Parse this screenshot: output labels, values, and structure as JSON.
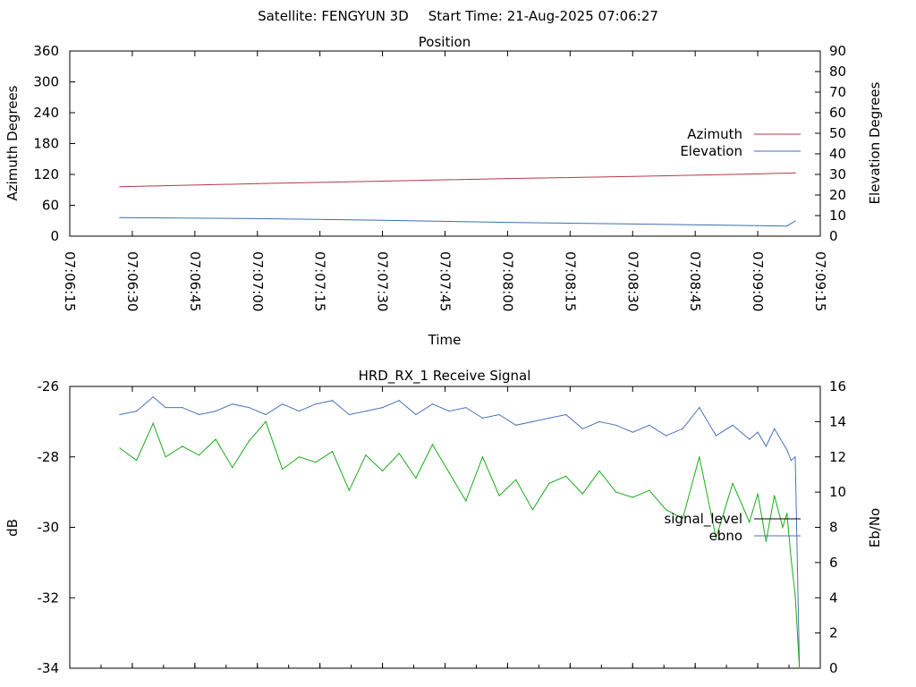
{
  "header": {
    "satellite": "Satellite: FENGYUN 3D",
    "start_time": "Start Time: 21-Aug-2025 07:06:27"
  },
  "chart_data": [
    {
      "type": "line",
      "title": "Position",
      "xlabel": "Time",
      "ylabel": "Azimuth Degrees",
      "y2label": "Elevation Degrees",
      "xlim": [
        "07:06:15",
        "07:09:15"
      ],
      "x_ticks": [
        "07:06:15",
        "07:06:30",
        "07:06:45",
        "07:07:00",
        "07:07:15",
        "07:07:30",
        "07:07:45",
        "07:08:00",
        "07:08:15",
        "07:08:30",
        "07:08:45",
        "07:09:00",
        "07:09:15"
      ],
      "ylim": [
        0,
        360
      ],
      "y_ticks": [
        "0",
        "60",
        "120",
        "180",
        "240",
        "300",
        "360"
      ],
      "y2lim": [
        0,
        90
      ],
      "y2_ticks": [
        "0",
        "10",
        "20",
        "30",
        "40",
        "50",
        "60",
        "70",
        "80",
        "90"
      ],
      "legend_position": "right",
      "series": [
        {
          "name": "Azimuth",
          "axis": "y",
          "color": "#b03a48",
          "x": [
            "07:06:27",
            "07:07:00",
            "07:07:30",
            "07:08:00",
            "07:08:30",
            "07:09:00",
            "07:09:09"
          ],
          "values": [
            96,
            102,
            107,
            112,
            116,
            121,
            123
          ]
        },
        {
          "name": "Elevation",
          "axis": "y2",
          "color": "#3a6fb0",
          "x": [
            "07:06:27",
            "07:07:00",
            "07:07:30",
            "07:08:00",
            "07:08:30",
            "07:09:00",
            "07:09:07",
            "07:09:09"
          ],
          "values": [
            9,
            8.5,
            7.7,
            6.7,
            5.9,
            5.1,
            4.9,
            7.4
          ]
        }
      ]
    },
    {
      "type": "line",
      "title": "HRD_RX_1 Receive Signal",
      "ylabel": "dB",
      "y2label": "Eb/No",
      "xlim": [
        "07:06:15",
        "07:09:15"
      ],
      "ylim": [
        -34,
        -26
      ],
      "y_ticks": [
        "-34",
        "-32",
        "-30",
        "-28",
        "-26"
      ],
      "y2lim": [
        0,
        16
      ],
      "y2_ticks": [
        "0",
        "2",
        "4",
        "6",
        "8",
        "10",
        "12",
        "14",
        "16"
      ],
      "legend_position": "right",
      "series": [
        {
          "name": "signal_level",
          "axis": "y",
          "color": "#4a72b8",
          "x": [
            "07:06:27",
            "07:06:31",
            "07:06:35",
            "07:06:38",
            "07:06:42",
            "07:06:46",
            "07:06:50",
            "07:06:54",
            "07:06:58",
            "07:07:02",
            "07:07:06",
            "07:07:10",
            "07:07:14",
            "07:07:18",
            "07:07:22",
            "07:07:26",
            "07:07:30",
            "07:07:34",
            "07:07:38",
            "07:07:42",
            "07:07:46",
            "07:07:50",
            "07:07:54",
            "07:07:58",
            "07:08:02",
            "07:08:06",
            "07:08:10",
            "07:08:14",
            "07:08:18",
            "07:08:22",
            "07:08:26",
            "07:08:30",
            "07:08:34",
            "07:08:38",
            "07:08:42",
            "07:08:46",
            "07:08:50",
            "07:08:54",
            "07:08:58",
            "07:09:00",
            "07:09:02",
            "07:09:04",
            "07:09:06",
            "07:09:07",
            "07:09:08",
            "07:09:09",
            "07:09:10"
          ],
          "values": [
            -26.8,
            -26.7,
            -26.3,
            -26.6,
            -26.6,
            -26.8,
            -26.7,
            -26.5,
            -26.6,
            -26.8,
            -26.5,
            -26.7,
            -26.5,
            -26.4,
            -26.8,
            -26.7,
            -26.6,
            -26.4,
            -26.8,
            -26.5,
            -26.7,
            -26.6,
            -26.9,
            -26.8,
            -27.1,
            -27.0,
            -26.9,
            -26.8,
            -27.2,
            -27.0,
            -27.1,
            -27.3,
            -27.1,
            -27.4,
            -27.2,
            -26.6,
            -27.4,
            -27.1,
            -27.5,
            -27.3,
            -27.7,
            -27.2,
            -27.6,
            -27.8,
            -28.1,
            -28.0,
            -34.0
          ]
        },
        {
          "name": "ebno",
          "axis": "y2",
          "color": "#1aaa1a",
          "x": [
            "07:06:27",
            "07:06:31",
            "07:06:35",
            "07:06:38",
            "07:06:42",
            "07:06:46",
            "07:06:50",
            "07:06:54",
            "07:06:58",
            "07:07:02",
            "07:07:06",
            "07:07:10",
            "07:07:14",
            "07:07:18",
            "07:07:22",
            "07:07:26",
            "07:07:30",
            "07:07:34",
            "07:07:38",
            "07:07:42",
            "07:07:46",
            "07:07:50",
            "07:07:54",
            "07:07:58",
            "07:08:02",
            "07:08:06",
            "07:08:10",
            "07:08:14",
            "07:08:18",
            "07:08:22",
            "07:08:26",
            "07:08:30",
            "07:08:34",
            "07:08:38",
            "07:08:42",
            "07:08:46",
            "07:08:50",
            "07:08:54",
            "07:08:58",
            "07:09:00",
            "07:09:02",
            "07:09:04",
            "07:09:06",
            "07:09:07",
            "07:09:08",
            "07:09:09",
            "07:09:10"
          ],
          "values": [
            12.5,
            11.8,
            13.9,
            12.0,
            12.6,
            12.1,
            13.0,
            11.4,
            12.9,
            14.0,
            11.3,
            12.0,
            11.7,
            12.3,
            10.1,
            12.1,
            11.2,
            12.2,
            10.8,
            12.7,
            11.1,
            9.5,
            12.0,
            9.8,
            10.7,
            9.0,
            10.5,
            10.9,
            9.9,
            11.2,
            10.0,
            9.7,
            10.1,
            9.0,
            8.5,
            12.0,
            7.4,
            10.5,
            8.3,
            9.9,
            7.2,
            9.8,
            8.0,
            8.8,
            6.2,
            4.1,
            0.0
          ]
        }
      ]
    }
  ]
}
